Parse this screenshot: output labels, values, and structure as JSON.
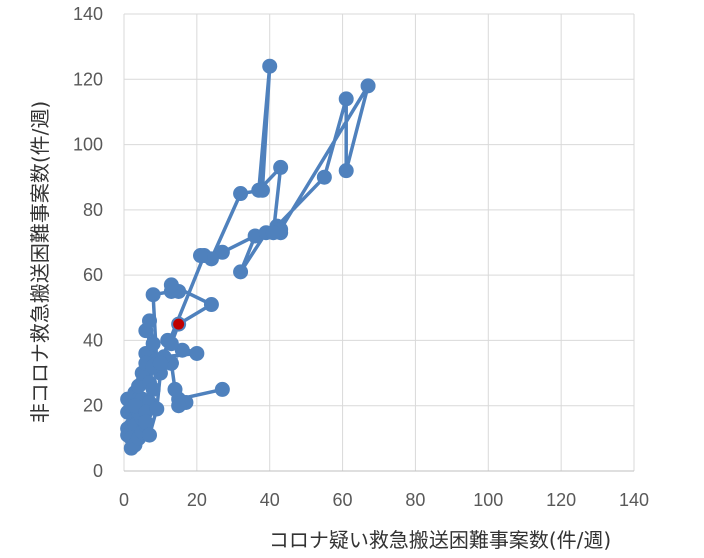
{
  "chart_data": {
    "type": "scatter",
    "xlabel": "コロナ疑い救急搬送困難事案数(件/週)",
    "ylabel": "非コロナ救急搬送困難事案数(件/週)",
    "xlim": [
      0,
      140
    ],
    "ylim": [
      0,
      140
    ],
    "xticks": [
      0,
      20,
      40,
      60,
      80,
      100,
      120,
      140
    ],
    "yticks": [
      0,
      20,
      40,
      60,
      80,
      100,
      120,
      140
    ],
    "grid": true,
    "series": [
      {
        "color": "#4f81bd",
        "points": [
          [
            27,
            25
          ],
          [
            15,
            22
          ],
          [
            17,
            21
          ],
          [
            15,
            20
          ],
          [
            14,
            25
          ],
          [
            13,
            33
          ],
          [
            8,
            33
          ],
          [
            7,
            32
          ],
          [
            6,
            36
          ],
          [
            9,
            34
          ],
          [
            6,
            43
          ],
          [
            7,
            46
          ],
          [
            8,
            39
          ],
          [
            6,
            30
          ],
          [
            5,
            27
          ],
          [
            4,
            22
          ],
          [
            3,
            20
          ],
          [
            2,
            18
          ],
          [
            1,
            18
          ],
          [
            1,
            22
          ],
          [
            2,
            20
          ],
          [
            3,
            24
          ],
          [
            4,
            22
          ],
          [
            5,
            22
          ],
          [
            4,
            18
          ],
          [
            3,
            16
          ],
          [
            2,
            14
          ],
          [
            1,
            13
          ],
          [
            1,
            11
          ],
          [
            2,
            12
          ],
          [
            3,
            14
          ],
          [
            2,
            10
          ],
          [
            2,
            7
          ],
          [
            3,
            8
          ],
          [
            4,
            10
          ],
          [
            5,
            12
          ],
          [
            6,
            14
          ],
          [
            5,
            16
          ],
          [
            4,
            18
          ],
          [
            3,
            20
          ],
          [
            4,
            26
          ],
          [
            5,
            30
          ],
          [
            6,
            33
          ],
          [
            7,
            27
          ],
          [
            8,
            25
          ],
          [
            7,
            21
          ],
          [
            6,
            18
          ],
          [
            6,
            15
          ],
          [
            7,
            11
          ],
          [
            9,
            19
          ],
          [
            10,
            30
          ],
          [
            12,
            40
          ],
          [
            16,
            37
          ],
          [
            13,
            33
          ],
          [
            9,
            33
          ],
          [
            8,
            54
          ],
          [
            13,
            55
          ],
          [
            15,
            55
          ],
          [
            13,
            57
          ],
          [
            24,
            51
          ],
          [
            15,
            45
          ],
          [
            13,
            39
          ],
          [
            20,
            36
          ],
          [
            11,
            35
          ],
          [
            8,
            32
          ],
          [
            10,
            33
          ],
          [
            22,
            66
          ],
          [
            27,
            67
          ],
          [
            36,
            72
          ],
          [
            32,
            61
          ],
          [
            39,
            73
          ],
          [
            43,
            73
          ],
          [
            42,
            75
          ],
          [
            55,
            90
          ],
          [
            61,
            114
          ],
          [
            61,
            92
          ],
          [
            67,
            118
          ],
          [
            43,
            74
          ],
          [
            41,
            73
          ],
          [
            43,
            93
          ],
          [
            37,
            86
          ],
          [
            40,
            124
          ],
          [
            38,
            86
          ],
          [
            32,
            85
          ],
          [
            24,
            65
          ],
          [
            21,
            66
          ]
        ]
      }
    ],
    "highlight": {
      "x": 15,
      "y": 45,
      "color": "#c00000"
    }
  }
}
